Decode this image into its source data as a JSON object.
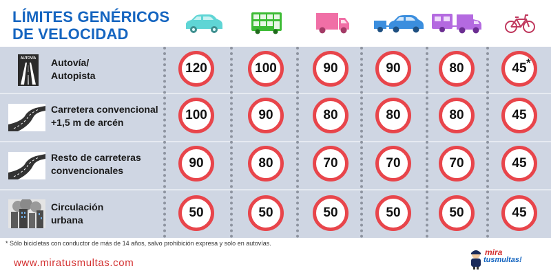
{
  "title_line1": "LÍMITES GENÉRICOS",
  "title_line2": "DE VELOCIDAD",
  "vehicles": [
    {
      "icon": "car-icon",
      "color": "#5fd5d5"
    },
    {
      "icon": "bus-icon",
      "color": "#3dbb35"
    },
    {
      "icon": "truck-icon",
      "color": "#f06fa6"
    },
    {
      "icon": "car-trailer-icon",
      "color": "#3b8ede"
    },
    {
      "icon": "van-caravan-icon",
      "color": "#b46ae0"
    },
    {
      "icon": "bicycle-icon",
      "color": "#c0395e"
    }
  ],
  "rows": [
    {
      "line1": "Autovía/",
      "line2": "Autopista",
      "icon": "highway-sign-icon",
      "sign_text": "AUTOVÍA",
      "limits": [
        "120",
        "100",
        "90",
        "90",
        "80",
        "45"
      ]
    },
    {
      "line1": "Carretera convencional",
      "line2": "+1,5 m de arcén",
      "icon": "winding-road-icon",
      "limits": [
        "100",
        "90",
        "80",
        "80",
        "80",
        "45"
      ]
    },
    {
      "line1": "Resto de carreteras",
      "line2": "convencionales",
      "icon": "winding-road-icon",
      "limits": [
        "90",
        "80",
        "70",
        "70",
        "70",
        "45"
      ]
    },
    {
      "line1": "Circulación",
      "line2": "urbana",
      "icon": "city-icon",
      "limits": [
        "50",
        "50",
        "50",
        "50",
        "50",
        "45"
      ]
    }
  ],
  "asterisk": "*",
  "footnote": "* Sólo bicicletas con conductor de más de 14 años, salvo prohibición expresa y solo en autovías.",
  "website": "www.miratusmultas.com",
  "logo_line1": "mira",
  "logo_line2": "tusmultas!",
  "colors": {
    "title": "#1565c0",
    "panel": "#cfd6e3",
    "sign_ring": "#e8454b",
    "url": "#d32f2f"
  }
}
